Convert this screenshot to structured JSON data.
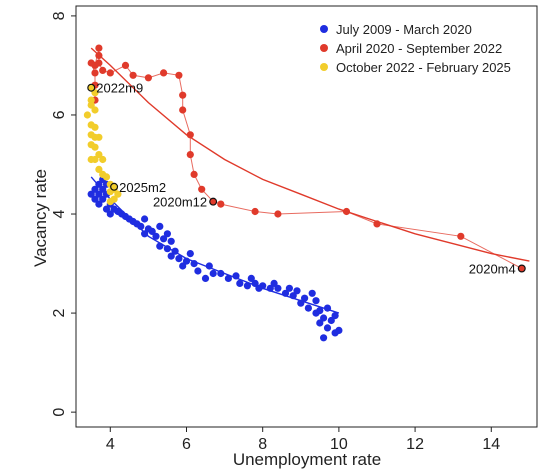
{
  "chart_data": {
    "type": "scatter",
    "title": "",
    "xlabel": "Unemployment rate",
    "ylabel": "Vacancy rate",
    "xlim": [
      3.1,
      15.2
    ],
    "ylim": [
      -0.3,
      8.2
    ],
    "xticks": [
      "4",
      "6",
      "8",
      "10",
      "12",
      "14"
    ],
    "yticks": [
      "0",
      "2",
      "4",
      "6",
      "8"
    ],
    "grid": false,
    "legend_position": "top-right",
    "series": [
      {
        "name": "July 2009 - March 2020",
        "color": "#1f2de0",
        "connected": false,
        "points": [
          [
            9.6,
            1.5
          ],
          [
            9.9,
            1.6
          ],
          [
            10.0,
            1.65
          ],
          [
            9.7,
            1.7
          ],
          [
            9.5,
            1.8
          ],
          [
            9.8,
            1.85
          ],
          [
            9.6,
            1.9
          ],
          [
            9.9,
            1.95
          ],
          [
            9.4,
            2.0
          ],
          [
            9.5,
            2.05
          ],
          [
            9.7,
            2.1
          ],
          [
            9.2,
            2.1
          ],
          [
            9.0,
            2.2
          ],
          [
            9.4,
            2.25
          ],
          [
            9.1,
            2.3
          ],
          [
            8.8,
            2.35
          ],
          [
            9.3,
            2.4
          ],
          [
            8.6,
            2.4
          ],
          [
            8.9,
            2.45
          ],
          [
            8.4,
            2.5
          ],
          [
            8.7,
            2.5
          ],
          [
            8.2,
            2.5
          ],
          [
            8.0,
            2.55
          ],
          [
            8.3,
            2.6
          ],
          [
            7.8,
            2.6
          ],
          [
            7.9,
            2.5
          ],
          [
            7.6,
            2.55
          ],
          [
            7.4,
            2.6
          ],
          [
            7.7,
            2.7
          ],
          [
            7.3,
            2.75
          ],
          [
            7.1,
            2.7
          ],
          [
            6.9,
            2.8
          ],
          [
            6.7,
            2.8
          ],
          [
            6.5,
            2.7
          ],
          [
            6.3,
            2.85
          ],
          [
            6.6,
            2.95
          ],
          [
            6.2,
            3.0
          ],
          [
            6.0,
            3.05
          ],
          [
            5.9,
            2.95
          ],
          [
            5.8,
            3.1
          ],
          [
            5.6,
            3.15
          ],
          [
            6.1,
            3.2
          ],
          [
            5.7,
            3.25
          ],
          [
            5.5,
            3.3
          ],
          [
            5.3,
            3.35
          ],
          [
            5.6,
            3.45
          ],
          [
            5.4,
            3.5
          ],
          [
            5.2,
            3.55
          ],
          [
            5.5,
            3.6
          ],
          [
            5.1,
            3.65
          ],
          [
            4.9,
            3.6
          ],
          [
            5.0,
            3.7
          ],
          [
            4.8,
            3.75
          ],
          [
            5.3,
            3.75
          ],
          [
            4.7,
            3.8
          ],
          [
            4.6,
            3.85
          ],
          [
            4.5,
            3.9
          ],
          [
            4.9,
            3.9
          ],
          [
            4.4,
            3.95
          ],
          [
            4.3,
            4.0
          ],
          [
            4.2,
            4.05
          ],
          [
            4.1,
            4.1
          ],
          [
            4.0,
            4.0
          ],
          [
            3.9,
            4.1
          ],
          [
            4.0,
            4.2
          ],
          [
            3.7,
            4.2
          ],
          [
            3.8,
            4.3
          ],
          [
            3.6,
            4.3
          ],
          [
            3.7,
            4.4
          ],
          [
            3.9,
            4.4
          ],
          [
            3.5,
            4.4
          ],
          [
            3.6,
            4.5
          ],
          [
            3.8,
            4.5
          ],
          [
            3.7,
            4.6
          ],
          [
            3.9,
            4.6
          ],
          [
            3.8,
            4.7
          ]
        ]
      },
      {
        "name": "April 2020 - September 2022",
        "color": "#e03a2b",
        "connected": true,
        "points": [
          [
            14.8,
            2.9
          ],
          [
            13.2,
            3.55
          ],
          [
            11.0,
            3.8
          ],
          [
            10.2,
            4.05
          ],
          [
            8.4,
            4.0
          ],
          [
            7.8,
            4.05
          ],
          [
            6.9,
            4.2
          ],
          [
            6.7,
            4.25
          ],
          [
            6.4,
            4.5
          ],
          [
            6.2,
            4.8
          ],
          [
            6.1,
            5.2
          ],
          [
            6.1,
            5.6
          ],
          [
            5.9,
            6.1
          ],
          [
            5.9,
            6.4
          ],
          [
            5.8,
            6.8
          ],
          [
            5.4,
            6.85
          ],
          [
            5.0,
            6.75
          ],
          [
            4.6,
            6.8
          ],
          [
            4.4,
            7.0
          ],
          [
            4.0,
            6.85
          ],
          [
            3.8,
            6.9
          ],
          [
            3.7,
            7.05
          ],
          [
            3.7,
            7.2
          ],
          [
            3.7,
            7.35
          ],
          [
            3.6,
            7.0
          ],
          [
            3.5,
            7.05
          ],
          [
            3.6,
            6.85
          ],
          [
            3.6,
            6.6
          ],
          [
            3.6,
            6.3
          ]
        ]
      },
      {
        "name": "October 2022 - February 2025",
        "color": "#f2cd2b",
        "connected": false,
        "points": [
          [
            3.5,
            6.55
          ],
          [
            3.6,
            6.45
          ],
          [
            3.5,
            6.3
          ],
          [
            3.5,
            6.2
          ],
          [
            3.6,
            6.1
          ],
          [
            3.4,
            6.0
          ],
          [
            3.5,
            5.8
          ],
          [
            3.6,
            5.75
          ],
          [
            3.5,
            5.6
          ],
          [
            3.6,
            5.55
          ],
          [
            3.7,
            5.55
          ],
          [
            3.5,
            5.4
          ],
          [
            3.6,
            5.35
          ],
          [
            3.7,
            5.2
          ],
          [
            3.6,
            5.1
          ],
          [
            3.5,
            5.1
          ],
          [
            3.8,
            5.1
          ],
          [
            3.7,
            4.9
          ],
          [
            3.8,
            4.8
          ],
          [
            3.9,
            4.75
          ],
          [
            4.0,
            4.6
          ],
          [
            4.1,
            4.5
          ],
          [
            4.0,
            4.45
          ],
          [
            4.2,
            4.4
          ],
          [
            4.1,
            4.3
          ],
          [
            4.0,
            4.25
          ],
          [
            4.1,
            4.55
          ]
        ]
      }
    ],
    "fit_lines": [
      {
        "series": "July 2009 - March 2020",
        "color": "#1f2de0",
        "points": [
          [
            3.5,
            4.75
          ],
          [
            4.0,
            4.3
          ],
          [
            5.0,
            3.55
          ],
          [
            6.0,
            3.1
          ],
          [
            7.0,
            2.8
          ],
          [
            8.0,
            2.5
          ],
          [
            9.0,
            2.25
          ],
          [
            10.0,
            2.0
          ]
        ]
      },
      {
        "series": "April 2020 - September 2022",
        "color": "#e03a2b",
        "points": [
          [
            3.5,
            7.35
          ],
          [
            4.0,
            7.0
          ],
          [
            5.0,
            6.25
          ],
          [
            6.0,
            5.6
          ],
          [
            7.0,
            5.1
          ],
          [
            8.0,
            4.7
          ],
          [
            9.0,
            4.4
          ],
          [
            10.0,
            4.1
          ],
          [
            11.0,
            3.85
          ],
          [
            12.0,
            3.6
          ],
          [
            13.0,
            3.4
          ],
          [
            14.0,
            3.2
          ],
          [
            15.0,
            3.05
          ]
        ]
      }
    ],
    "annotations": [
      {
        "label": "2022m9",
        "x": 3.5,
        "y": 6.55,
        "position": "right"
      },
      {
        "label": "2025m2",
        "x": 4.1,
        "y": 4.55,
        "position": "right"
      },
      {
        "label": "2020m12",
        "x": 6.7,
        "y": 4.25,
        "position": "left"
      },
      {
        "label": "2020m4",
        "x": 14.8,
        "y": 2.9,
        "position": "left"
      }
    ]
  }
}
